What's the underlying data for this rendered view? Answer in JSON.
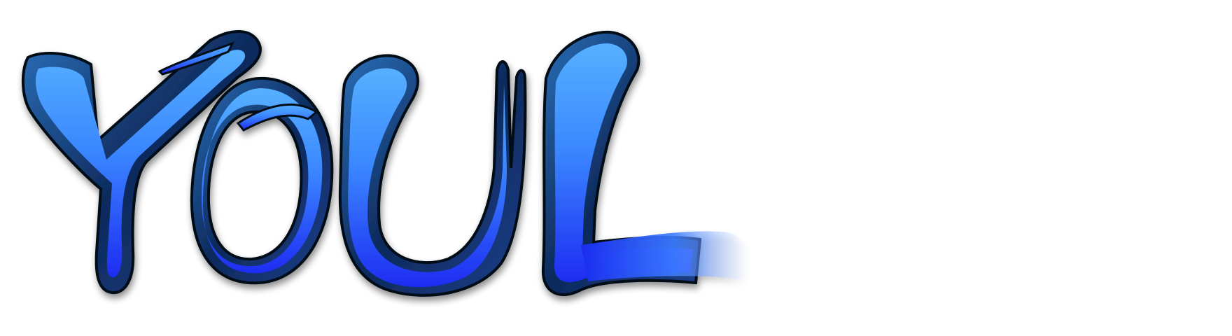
{
  "logo": {
    "text": "YOUL",
    "colors": {
      "fill_light": "#4fa8ff",
      "fill_mid": "#2f6cff",
      "fill_dark": "#1a2cf0",
      "bevel_dark": "#0b1a3a",
      "bevel_blue": "#1d4f8f",
      "outline": "#050a18",
      "background": "#ffffff"
    },
    "letters": [
      {
        "char": "Y",
        "icon": "letter-y-glyph"
      },
      {
        "char": "O",
        "icon": "letter-o-glyph"
      },
      {
        "char": "U",
        "icon": "letter-u-glyph"
      },
      {
        "char": "L",
        "icon": "letter-l-glyph"
      }
    ]
  }
}
